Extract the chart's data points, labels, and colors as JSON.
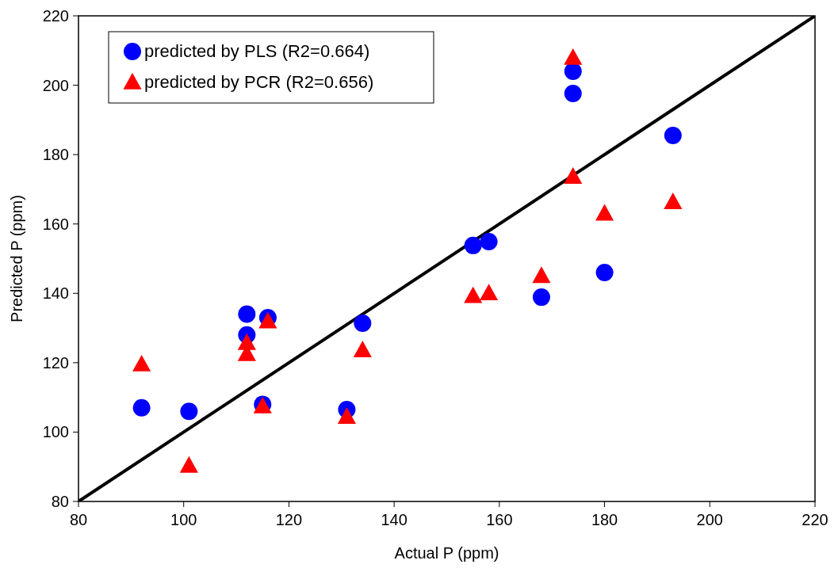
{
  "chart_data": {
    "type": "scatter",
    "xlabel": "Actual P (ppm)",
    "ylabel": "Predicted P (ppm)",
    "xlim": [
      80,
      220
    ],
    "xticks": [
      80,
      100,
      120,
      140,
      160,
      180,
      200,
      220
    ],
    "ylim": [
      80,
      220
    ],
    "yticks": [
      80,
      100,
      120,
      140,
      160,
      180,
      200,
      220
    ],
    "grid": false,
    "legend": "top left",
    "series": [
      {
        "name": "predicted by PLS (R2=0.664)",
        "color": "#0000ff",
        "marker": "circle",
        "x": [
          92,
          101,
          112,
          112,
          116,
          115,
          131,
          134,
          155,
          158,
          168,
          174,
          174,
          180,
          193
        ],
        "values": [
          107,
          106,
          134,
          128,
          133,
          108,
          106.5,
          131.4,
          153.8,
          154.9,
          138.9,
          204,
          197.6,
          146,
          185.5
        ]
      },
      {
        "name": "predicted by PCR (R2=0.656)",
        "color": "#ff0000",
        "marker": "triangle",
        "x": [
          92,
          101,
          112,
          112,
          116,
          115,
          131,
          134,
          155,
          158,
          168,
          174,
          174,
          180,
          193
        ],
        "values": [
          119.5,
          90.3,
          125.7,
          122.5,
          131.9,
          107.4,
          104.4,
          123.6,
          139.2,
          140,
          145,
          207.9,
          173.6,
          163,
          166.3
        ]
      },
      {
        "type": "line",
        "color": "#000000",
        "x": [
          80,
          220
        ],
        "values": [
          80,
          220
        ]
      }
    ]
  }
}
